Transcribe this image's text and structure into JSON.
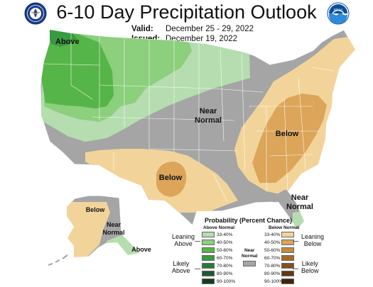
{
  "title": "6-10 Day Precipitation Outlook",
  "valid_label": "Valid:",
  "valid_dates": "December 25 - 29, 2022",
  "issued_label": "Issued:",
  "issued_date": "December 19, 2022",
  "noaa_logo_text": "NOAA",
  "map_labels": {
    "above_nw": "Above",
    "near_normal_center": "Near\nNormal",
    "below_east": "Below",
    "below_south": "Below",
    "near_normal_fl": "Near\nNormal",
    "below_alaska": "Below",
    "near_normal_alaska": "Near\nNormal",
    "above_alaska": "Above"
  },
  "legend": {
    "title": "Probability (Percent Chance)",
    "above_header": "Above Normal",
    "below_header": "Below Normal",
    "near_header": "Near\nNormal",
    "leaning_above": "Leaning\nAbove",
    "likely_above": "Likely\nAbove",
    "leaning_below": "Leaning\nBelow",
    "likely_below": "Likely\nBelow",
    "above_bins": [
      {
        "label": "33-40%",
        "color": "#b5ddb0"
      },
      {
        "label": "40-50%",
        "color": "#8ccf7d"
      },
      {
        "label": "50-60%",
        "color": "#56b548"
      },
      {
        "label": "60-70%",
        "color": "#3a9a41"
      },
      {
        "label": "70-80%",
        "color": "#2b7a3a"
      },
      {
        "label": "80-90%",
        "color": "#1f5a2d"
      },
      {
        "label": "90-100%",
        "color": "#133d1d"
      }
    ],
    "below_bins": [
      {
        "label": "33-40%",
        "color": "#f2d49a"
      },
      {
        "label": "40-50%",
        "color": "#dca55a"
      },
      {
        "label": "50-60%",
        "color": "#c88a3c"
      },
      {
        "label": "60-70%",
        "color": "#a66a28"
      },
      {
        "label": "70-80%",
        "color": "#83501e"
      },
      {
        "label": "80-90%",
        "color": "#623a16"
      },
      {
        "label": "90-100%",
        "color": "#3f250e"
      }
    ],
    "near_color": "#a5a5a5"
  },
  "colors": {
    "near_normal": "#a5a5a5",
    "above_33_40": "#b5ddb0",
    "above_40_50": "#8ccf7d",
    "above_50_60": "#56b548",
    "above_60_70": "#3a9a41",
    "below_33_40": "#f2d49a",
    "below_40_50": "#dca55a",
    "ocean": "#ffffff",
    "state_lines": "#ffffff"
  }
}
